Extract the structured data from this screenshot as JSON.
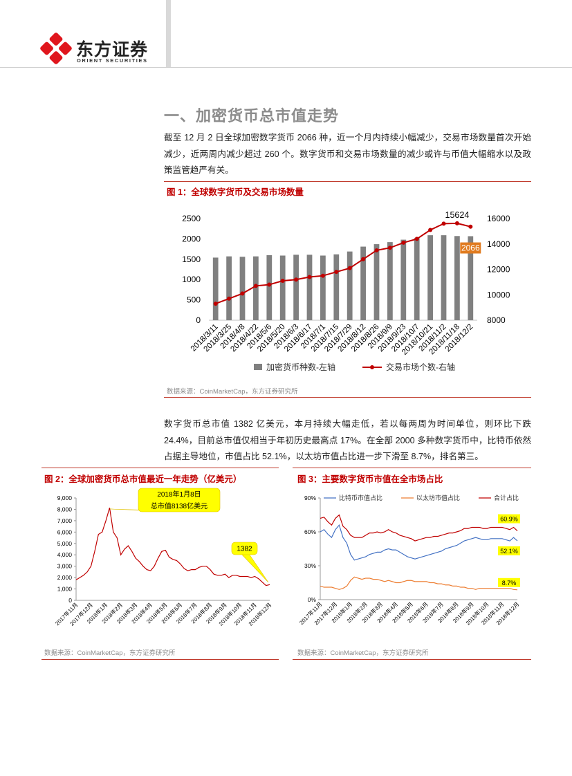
{
  "header": {
    "logo_text": "东方证券",
    "logo_subtext": "ORIENT SECURITIES"
  },
  "section_title": "一、加密货币总市值走势",
  "paragraphs": [
    "截至 12 月 2 日全球加密数字货币 2066 种，近一个月内持续小幅减少，交易市场数量首次开始减少，近两周内减少超过 260 个。数字货币和交易市场数量的减少或许与币值大幅缩水以及政策监管趋严有关。",
    "数字货币总市值 1382 亿美元，本月持续大幅走低，若以每两周为时间单位，则环比下跌 24.4%，目前总市值仅相当于年初历史最高点 17%。在全部 2000 多种数字货币中，比特币依然占据主导地位，市值占比 52.1%，以太坊市值占比进一步下滑至 8.7%，排名第三。"
  ],
  "figures": [
    {
      "caption": "图 1：全球数字货币及交易市场数量",
      "source": "数据来源：CoinMarketCap，东方证券研究所"
    },
    {
      "caption": "图 2：全球加密货币总市值最近一年走势（亿美元）",
      "source": "数据来源：CoinMarketCap，东方证券研究所"
    },
    {
      "caption": "图 3：主要数字货币市值在全市场占比",
      "source": "数据来源：CoinMarketCap，东方证券研究所"
    }
  ],
  "chart_data": [
    {
      "type": "bar",
      "categories": [
        "2018/3/11",
        "2018/3/25",
        "2018/4/8",
        "2018/4/22",
        "2018/5/6",
        "2018/5/20",
        "2018/6/3",
        "2018/6/17",
        "2018/7/1",
        "2018/7/15",
        "2018/7/29",
        "2018/8/12",
        "2018/8/26",
        "2018/9/9",
        "2018/9/23",
        "2018/10/7",
        "2018/10/21",
        "2018/11/2",
        "2018/11/18",
        "2018/12/2"
      ],
      "series": [
        {
          "name": "加密货币种数-左轴",
          "type": "bar",
          "color": "#808080",
          "values": [
            1540,
            1570,
            1560,
            1570,
            1600,
            1590,
            1610,
            1610,
            1590,
            1620,
            1690,
            1810,
            1870,
            1920,
            1980,
            2020,
            2090,
            2090,
            2070,
            2066
          ],
          "value_labels": [
            null,
            null,
            null,
            null,
            null,
            null,
            null,
            null,
            null,
            null,
            null,
            null,
            null,
            null,
            null,
            null,
            null,
            null,
            null,
            "2066"
          ]
        },
        {
          "name": "交易市场个数-右轴",
          "type": "line",
          "axis": "y2",
          "color": "#c00000",
          "values": [
            9300,
            9700,
            10100,
            10700,
            10800,
            11100,
            11200,
            11400,
            11500,
            11800,
            12100,
            12800,
            13500,
            13700,
            14100,
            14400,
            15100,
            15600,
            15624,
            15360
          ],
          "value_labels": [
            null,
            null,
            null,
            null,
            null,
            null,
            null,
            null,
            null,
            null,
            null,
            null,
            null,
            null,
            null,
            null,
            null,
            null,
            "15624",
            null
          ]
        }
      ],
      "ylim": [
        0,
        2500
      ],
      "yticks": [
        0,
        500,
        1000,
        1500,
        2000,
        2500
      ],
      "y2lim": [
        8000,
        16000
      ],
      "y2ticks": [
        8000,
        10000,
        12000,
        14000,
        16000
      ],
      "grid": false,
      "legend": "bottom"
    },
    {
      "type": "line",
      "categories": [
        "2017年11月",
        null,
        null,
        null,
        "2017年12月",
        null,
        null,
        null,
        "2018年1月",
        null,
        null,
        null,
        "2018年2月",
        null,
        null,
        null,
        "2018年3月",
        null,
        null,
        null,
        "2018年4月",
        null,
        null,
        null,
        "2018年5月",
        null,
        null,
        null,
        "2018年6月",
        null,
        null,
        null,
        "2018年7月",
        null,
        null,
        null,
        "2018年8月",
        null,
        null,
        null,
        "2018年9月",
        null,
        null,
        null,
        "2018年10月",
        null,
        null,
        null,
        "2018年11月",
        null,
        null,
        null,
        "2018年12月"
      ],
      "values": [
        1800,
        2000,
        2200,
        2500,
        3000,
        4300,
        5800,
        6000,
        7000,
        8138,
        6000,
        5500,
        4000,
        4500,
        4800,
        4300,
        3700,
        3400,
        3000,
        2700,
        2600,
        3000,
        3700,
        4300,
        4400,
        3800,
        3600,
        3500,
        3200,
        2800,
        2600,
        2700,
        2700,
        2900,
        3000,
        3000,
        2700,
        2300,
        2200,
        2200,
        2300,
        2000,
        2200,
        2200,
        2100,
        2100,
        2100,
        2000,
        2100,
        1900,
        1600,
        1300,
        1382
      ],
      "color": "#c00000",
      "ylim": [
        0,
        9000
      ],
      "yticks": [
        0,
        {
          "value": 1000,
          "label": "1,000"
        },
        {
          "value": 2000,
          "label": "2,000"
        },
        {
          "value": 3000,
          "label": "3,000"
        },
        {
          "value": 4000,
          "label": "4,000"
        },
        {
          "value": 5000,
          "label": "5,000"
        },
        {
          "value": 6000,
          "label": "6,000"
        },
        {
          "value": 7000,
          "label": "7,000"
        },
        {
          "value": 8000,
          "label": "8,000"
        },
        {
          "value": 9000,
          "label": "9,000"
        }
      ],
      "grid": false,
      "annotations": [
        [
          "2018年1月8日",
          "总市值8138亿美元"
        ],
        [
          "1382"
        ]
      ]
    },
    {
      "type": "line",
      "categories": [
        "2017年11月",
        null,
        null,
        null,
        "2017年12月",
        null,
        null,
        null,
        "2018年1月",
        null,
        null,
        null,
        "2018年2月",
        null,
        null,
        null,
        "2018年3月",
        null,
        null,
        null,
        "2018年4月",
        null,
        null,
        null,
        "2018年5月",
        null,
        null,
        null,
        "2018年6月",
        null,
        null,
        null,
        "2018年7月",
        null,
        null,
        null,
        "2018年8月",
        null,
        null,
        null,
        "2018年9月",
        null,
        null,
        null,
        "2018年10月",
        null,
        null,
        null,
        "2018年11月",
        null,
        null,
        null,
        "2018年12月"
      ],
      "series": [
        {
          "name": "比特币市值占比",
          "color": "#4472c4",
          "values": [
            60,
            62,
            58,
            55,
            62,
            66,
            55,
            50,
            40,
            35,
            36,
            37,
            38,
            40,
            41,
            42,
            42,
            44,
            45,
            44,
            44,
            42,
            40,
            38,
            37,
            36,
            37,
            38,
            39,
            40,
            41,
            42,
            43,
            45,
            46,
            47,
            48,
            50,
            52,
            53,
            54,
            55,
            54,
            53,
            53,
            54,
            54,
            54,
            54,
            53,
            52,
            55,
            52.1
          ],
          "value_labels": [
            null,
            null,
            null,
            null,
            null,
            null,
            null,
            null,
            null,
            null,
            null,
            null,
            null,
            null,
            null,
            null,
            null,
            null,
            null,
            null,
            null,
            null,
            null,
            null,
            null,
            null,
            null,
            null,
            null,
            null,
            null,
            null,
            null,
            null,
            null,
            null,
            null,
            null,
            null,
            null,
            null,
            null,
            null,
            null,
            null,
            null,
            null,
            null,
            null,
            null,
            null,
            null,
            "52.1%"
          ]
        },
        {
          "name": "以太坊市值占比",
          "color": "#ed7d31",
          "values": [
            12,
            11,
            11,
            11,
            10,
            9,
            10,
            12,
            17,
            20,
            19,
            18,
            19,
            19,
            18,
            18,
            17,
            16,
            17,
            16,
            15,
            15,
            16,
            17,
            17,
            16,
            16,
            16,
            16,
            15,
            15,
            14,
            14,
            13,
            13,
            12,
            12,
            11,
            11,
            10,
            10,
            9,
            10,
            10,
            10,
            10,
            10,
            10,
            10,
            10,
            10,
            9,
            8.7
          ],
          "value_labels": [
            null,
            null,
            null,
            null,
            null,
            null,
            null,
            null,
            null,
            null,
            null,
            null,
            null,
            null,
            null,
            null,
            null,
            null,
            null,
            null,
            null,
            null,
            null,
            null,
            null,
            null,
            null,
            null,
            null,
            null,
            null,
            null,
            null,
            null,
            null,
            null,
            null,
            null,
            null,
            null,
            null,
            null,
            null,
            null,
            null,
            null,
            null,
            null,
            null,
            null,
            null,
            null,
            "8.7%"
          ]
        },
        {
          "name": "合计占比",
          "color": "#c00000",
          "values": [
            72,
            73,
            69,
            66,
            72,
            75,
            65,
            62,
            57,
            55,
            55,
            55,
            57,
            59,
            59,
            60,
            59,
            60,
            62,
            60,
            59,
            57,
            56,
            55,
            54,
            52,
            53,
            54,
            55,
            55,
            56,
            56,
            57,
            58,
            59,
            59,
            60,
            61,
            63,
            63,
            64,
            64,
            64,
            63,
            63,
            64,
            64,
            64,
            64,
            63,
            62,
            64,
            60.9
          ],
          "value_labels": [
            null,
            null,
            null,
            null,
            null,
            null,
            null,
            null,
            null,
            null,
            null,
            null,
            null,
            null,
            null,
            null,
            null,
            null,
            null,
            null,
            null,
            null,
            null,
            null,
            null,
            null,
            null,
            null,
            null,
            null,
            null,
            null,
            null,
            null,
            null,
            null,
            null,
            null,
            null,
            null,
            null,
            null,
            null,
            null,
            null,
            null,
            null,
            null,
            null,
            null,
            null,
            null,
            "60.9%"
          ]
        }
      ],
      "ylim": [
        0,
        90
      ],
      "yticks": [
        {
          "value": 0,
          "label": "0%"
        },
        {
          "value": 30,
          "label": "30%"
        },
        {
          "value": 60,
          "label": "60%"
        },
        {
          "value": 90,
          "label": "90%"
        }
      ],
      "grid": false,
      "legend": "top"
    }
  ]
}
